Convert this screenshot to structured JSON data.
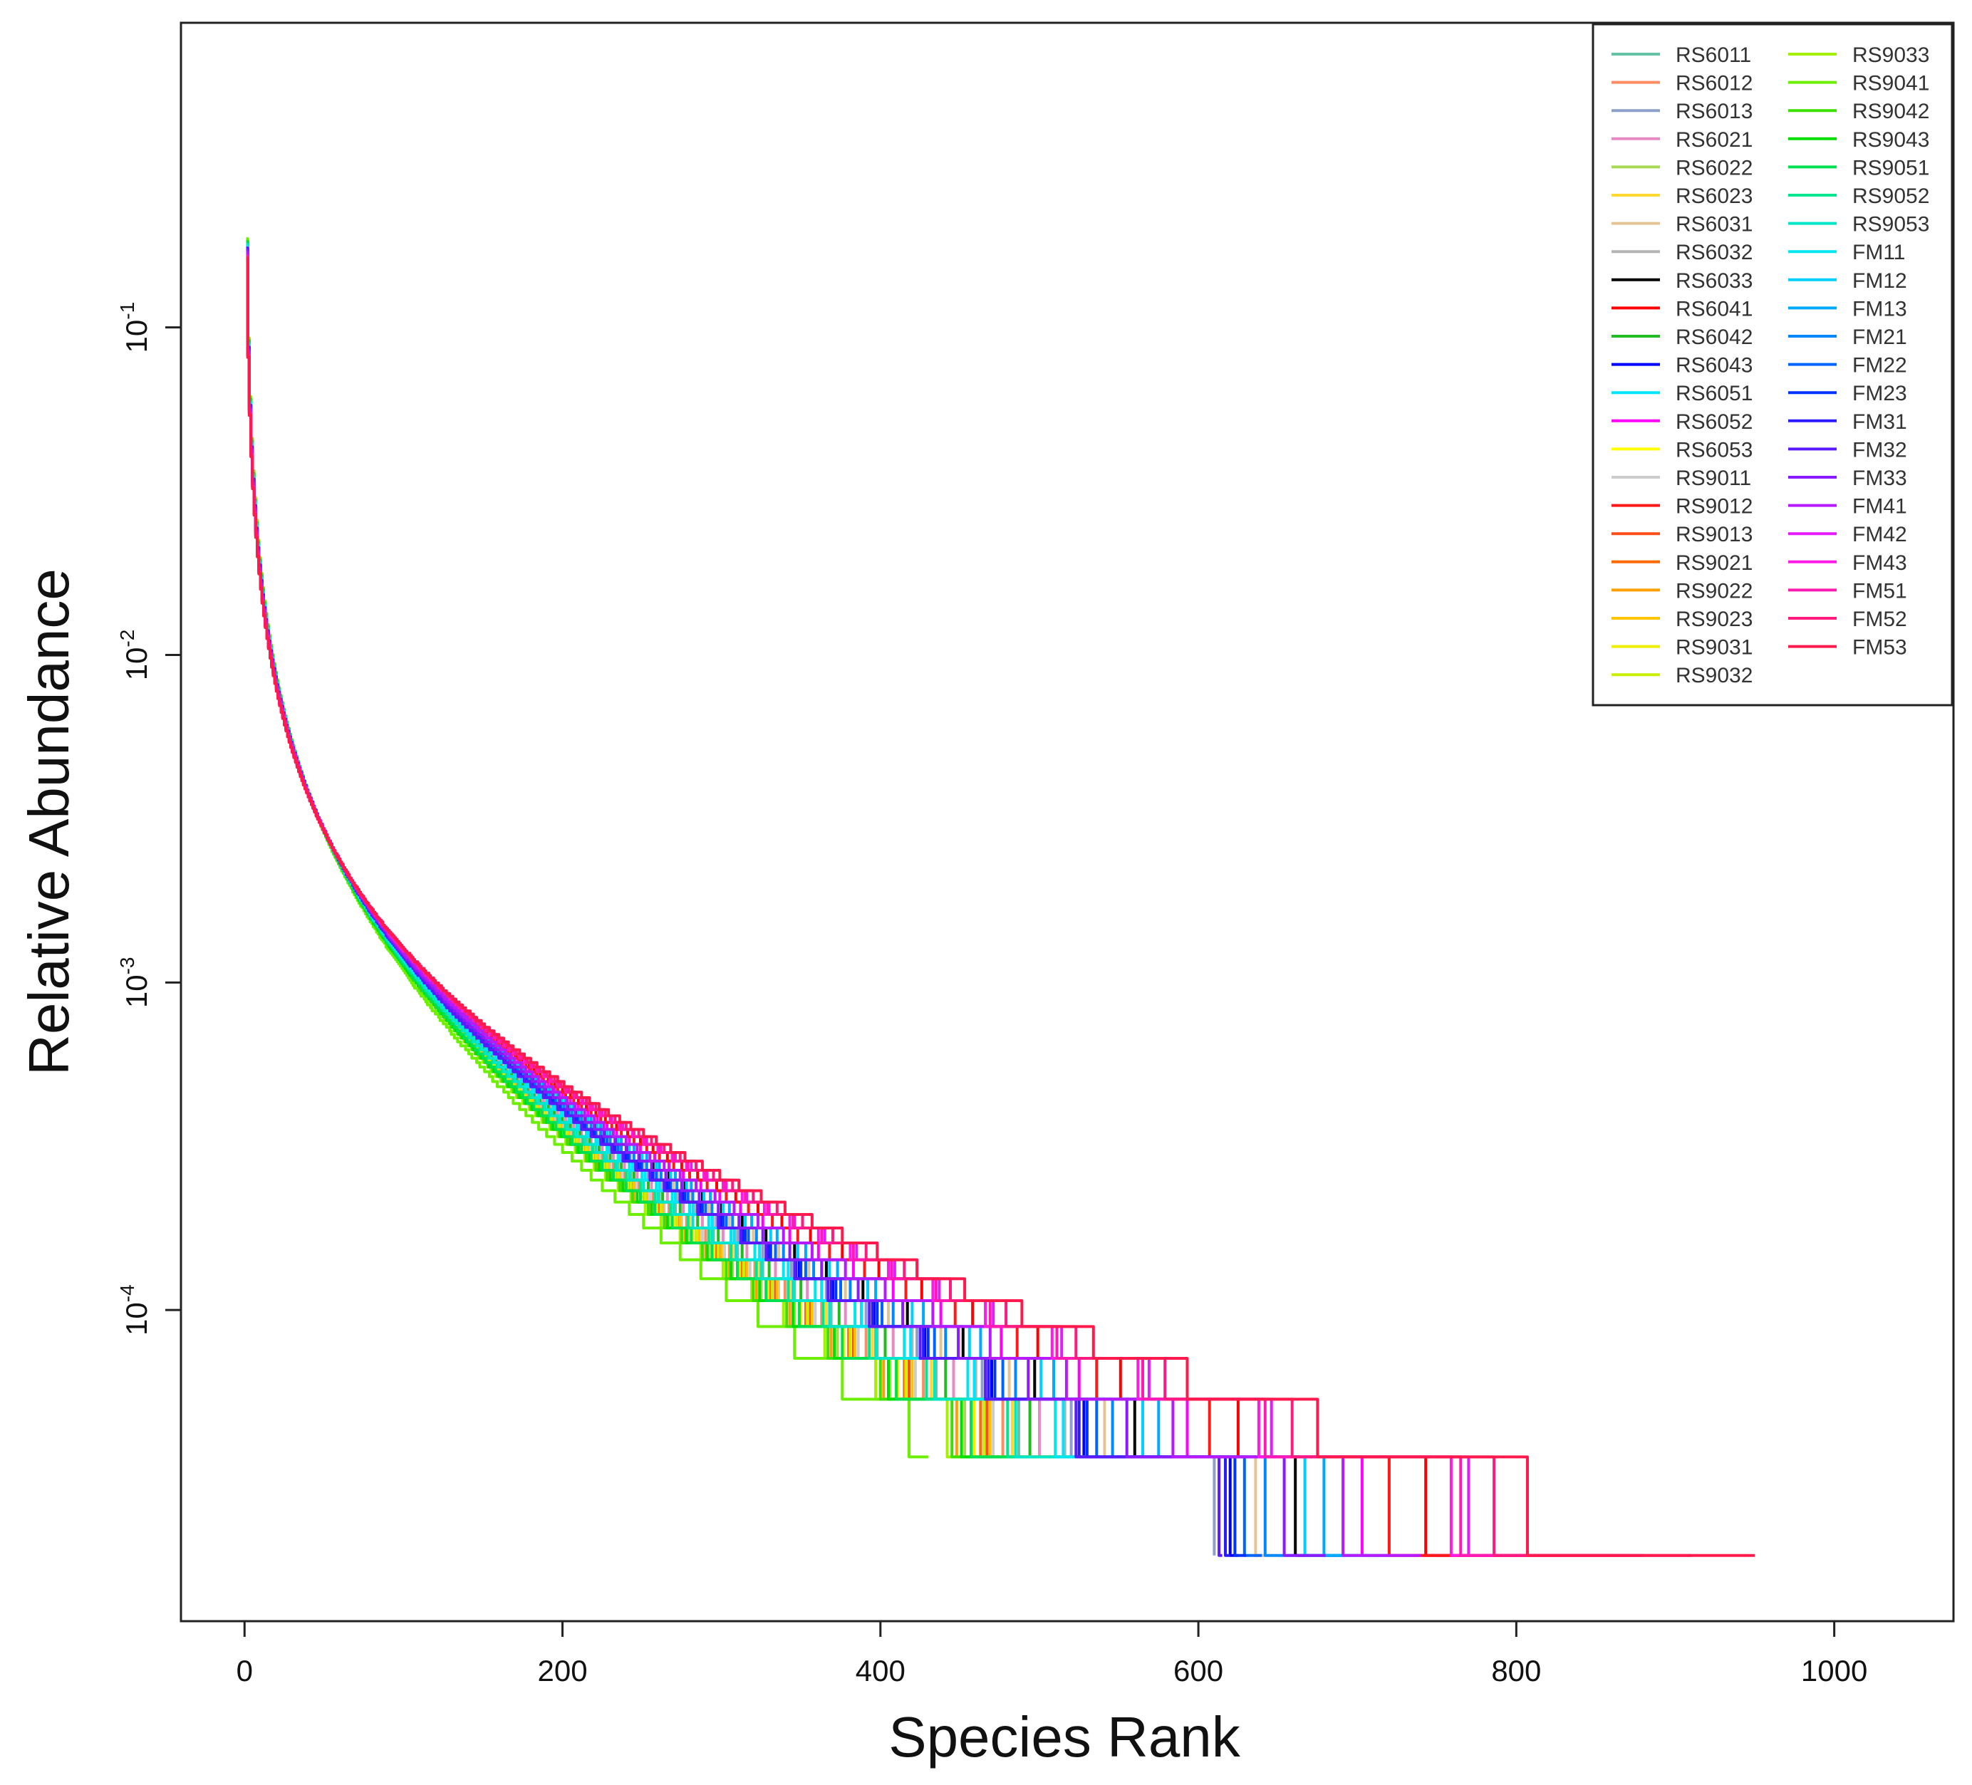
{
  "chart_data": {
    "type": "line",
    "title": "",
    "xlabel": "Species Rank",
    "ylabel": "Relative Abundance",
    "x_ticks": [
      0,
      200,
      400,
      600,
      800,
      1000
    ],
    "y_ticks": [
      {
        "value": 0.1,
        "base": "10",
        "exp": "-1"
      },
      {
        "value": 0.01,
        "base": "10",
        "exp": "-2"
      },
      {
        "value": 0.001,
        "base": "10",
        "exp": "-3"
      },
      {
        "value": 0.0001,
        "base": "10",
        "exp": "-4"
      }
    ],
    "xlim": [
      -40,
      1075
    ],
    "ylim_log10": [
      -4.95,
      -0.07
    ],
    "legend_position": "top-right",
    "series": [
      {
        "name": "RS6011",
        "color": "#66c2a5",
        "richness": 548
      },
      {
        "name": "RS6012",
        "color": "#fc8d62",
        "richness": 530
      },
      {
        "name": "RS6013",
        "color": "#8da0cb",
        "richness": 610
      },
      {
        "name": "RS6021",
        "color": "#e78ac3",
        "richness": 572
      },
      {
        "name": "RS6022",
        "color": "#a6d854",
        "richness": 488
      },
      {
        "name": "RS6023",
        "color": "#ffd92f",
        "richness": 540
      },
      {
        "name": "RS6031",
        "color": "#e5c494",
        "richness": 650
      },
      {
        "name": "RS6032",
        "color": "#b3b3b3",
        "richness": 602
      },
      {
        "name": "RS6033",
        "color": "#000000",
        "richness": 690
      },
      {
        "name": "RS6041",
        "color": "#ff0000",
        "richness": 830
      },
      {
        "name": "RS6042",
        "color": "#22bb22",
        "richness": 560
      },
      {
        "name": "RS6043",
        "color": "#0000ff",
        "richness": 625
      },
      {
        "name": "RS6051",
        "color": "#00e5ff",
        "richness": 600
      },
      {
        "name": "RS6052",
        "color": "#ff00ff",
        "richness": 760
      },
      {
        "name": "RS6053",
        "color": "#ffff00",
        "richness": 470
      },
      {
        "name": "RS9011",
        "color": "#cccccc",
        "richness": 520
      },
      {
        "name": "RS9012",
        "color": "#ff1a1a",
        "richness": 790
      },
      {
        "name": "RS9013",
        "color": "#ff4d1a",
        "richness": 512
      },
      {
        "name": "RS9021",
        "color": "#ff6a00",
        "richness": 505
      },
      {
        "name": "RS9022",
        "color": "#ff9f00",
        "richness": 480
      },
      {
        "name": "RS9023",
        "color": "#ffc400",
        "richness": 515
      },
      {
        "name": "RS9031",
        "color": "#eeee00",
        "richness": 498
      },
      {
        "name": "RS9032",
        "color": "#c8f000",
        "richness": 508
      },
      {
        "name": "RS9033",
        "color": "#a4f000",
        "richness": 470
      },
      {
        "name": "RS9041",
        "color": "#6cf000",
        "richness": 430
      },
      {
        "name": "RS9042",
        "color": "#3ee000",
        "richness": 475
      },
      {
        "name": "RS9043",
        "color": "#00e000",
        "richness": 485
      },
      {
        "name": "RS9051",
        "color": "#00e050",
        "richness": 495
      },
      {
        "name": "RS9052",
        "color": "#00e690",
        "richness": 535
      },
      {
        "name": "RS9053",
        "color": "#00e6c8",
        "richness": 545
      },
      {
        "name": "FM11",
        "color": "#00e6f0",
        "richness": 590
      },
      {
        "name": "FM12",
        "color": "#00cfff",
        "richness": 700
      },
      {
        "name": "FM13",
        "color": "#00aaff",
        "richness": 720
      },
      {
        "name": "FM21",
        "color": "#0088ff",
        "richness": 660
      },
      {
        "name": "FM22",
        "color": "#0066ff",
        "richness": 640
      },
      {
        "name": "FM23",
        "color": "#0033ff",
        "richness": 630
      },
      {
        "name": "FM31",
        "color": "#2a1aff",
        "richness": 620
      },
      {
        "name": "FM32",
        "color": "#5a1aff",
        "richness": 615
      },
      {
        "name": "FM33",
        "color": "#8a1aff",
        "richness": 680
      },
      {
        "name": "FM41",
        "color": "#b81aff",
        "richness": 740
      },
      {
        "name": "FM42",
        "color": "#e61aff",
        "richness": 880
      },
      {
        "name": "FM43",
        "color": "#ff1ae6",
        "richness": 860
      },
      {
        "name": "FM51",
        "color": "#ff1ab4",
        "richness": 870
      },
      {
        "name": "FM52",
        "color": "#ff1a80",
        "richness": 910
      },
      {
        "name": "FM53",
        "color": "#ff1a4d",
        "richness": 950
      }
    ]
  }
}
